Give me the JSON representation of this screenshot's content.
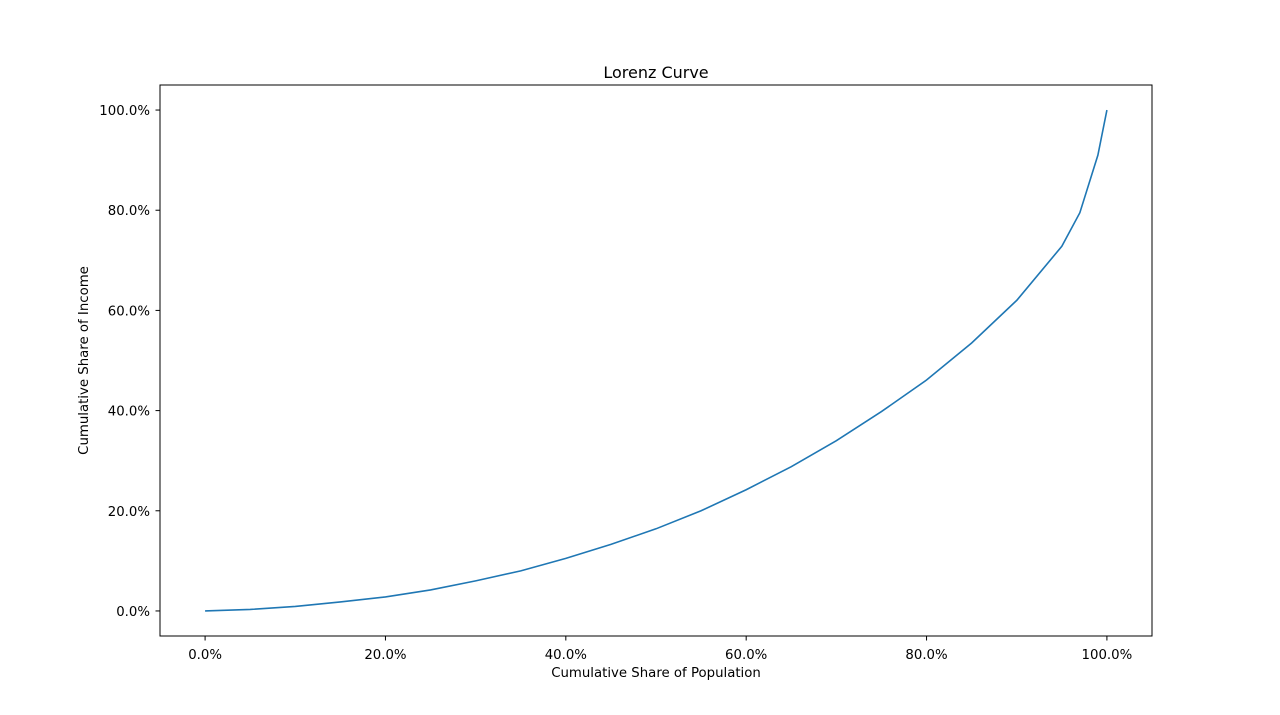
{
  "chart_data": {
    "type": "line",
    "title": "Lorenz Curve",
    "xlabel": "Cumulative Share of Population",
    "ylabel": "Cumulative Share of Income",
    "xlim": [
      -0.05,
      1.05
    ],
    "ylim": [
      -0.05,
      1.05
    ],
    "x_ticks": [
      0,
      0.2,
      0.4,
      0.6,
      0.8,
      1.0
    ],
    "y_ticks": [
      0,
      0.2,
      0.4,
      0.6,
      0.8,
      1.0
    ],
    "x_tick_labels": [
      "0.0%",
      "20.0%",
      "40.0%",
      "60.0%",
      "80.0%",
      "100.0%"
    ],
    "y_tick_labels": [
      "0.0%",
      "20.0%",
      "40.0%",
      "60.0%",
      "80.0%",
      "100.0%"
    ],
    "grid": false,
    "series": [
      {
        "color": "#1f77b4",
        "x": [
          0,
          0.05,
          0.1,
          0.15,
          0.2,
          0.25,
          0.3,
          0.35,
          0.4,
          0.45,
          0.5,
          0.55,
          0.6,
          0.65,
          0.7,
          0.75,
          0.8,
          0.85,
          0.9,
          0.95,
          0.97,
          0.99,
          1.0
        ],
        "y": [
          0,
          0.003,
          0.009,
          0.018,
          0.028,
          0.042,
          0.06,
          0.08,
          0.105,
          0.133,
          0.164,
          0.2,
          0.242,
          0.288,
          0.34,
          0.398,
          0.461,
          0.535,
          0.62,
          0.728,
          0.795,
          0.91,
          1.0
        ]
      }
    ]
  }
}
